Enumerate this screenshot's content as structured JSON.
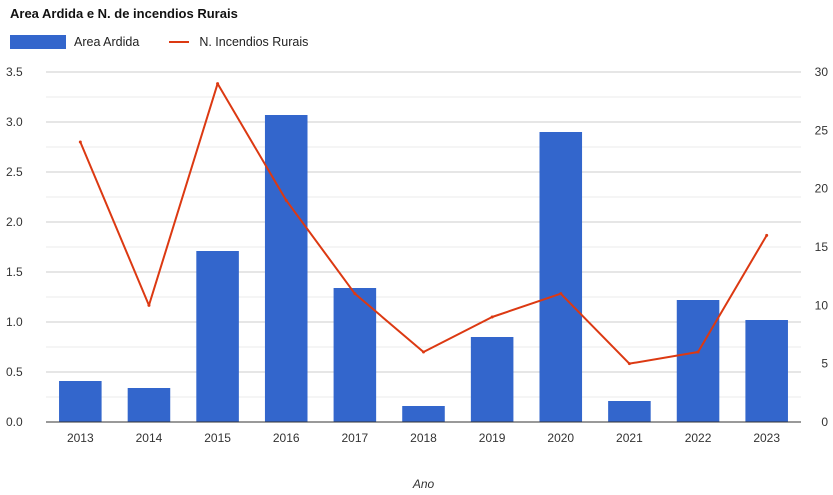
{
  "chart_data": {
    "type": "bar",
    "title": "Area Ardida e N. de incendios Rurais",
    "xlabel": "Ano",
    "categories": [
      "2013",
      "2014",
      "2015",
      "2016",
      "2017",
      "2018",
      "2019",
      "2020",
      "2021",
      "2022",
      "2023"
    ],
    "series": [
      {
        "name": "Area Ardida",
        "type": "bar",
        "axis": "left",
        "color": "#3366cc",
        "values": [
          0.41,
          0.34,
          1.71,
          3.07,
          1.34,
          0.16,
          0.85,
          2.9,
          0.21,
          1.22,
          1.02
        ]
      },
      {
        "name": "N. Incendios Rurais",
        "type": "line",
        "axis": "right",
        "color": "#dc3912",
        "values": [
          24,
          10,
          29,
          19,
          11,
          6,
          9,
          11,
          5,
          6,
          16
        ]
      }
    ],
    "y_left": {
      "ylim": [
        0,
        3.5
      ],
      "ticks": [
        "0.0",
        "0.5",
        "1.0",
        "1.5",
        "2.0",
        "2.5",
        "3.0",
        "3.5"
      ]
    },
    "y_right": {
      "ylim": [
        0,
        30
      ],
      "ticks": [
        "0",
        "5",
        "10",
        "15",
        "20",
        "25",
        "30"
      ]
    },
    "grid": true,
    "legend": "top-left"
  }
}
